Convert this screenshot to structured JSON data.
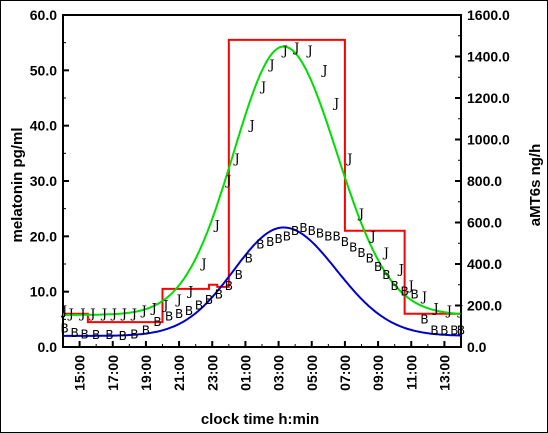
{
  "chart_data": {
    "type": "line",
    "title": "",
    "xlabel": "clock time h:min",
    "ylabel_left": "melatonin pg/ml",
    "ylabel_right": "aMT6s ng/h",
    "x_range_hours": [
      14,
      26
    ],
    "x_ticks": [
      "15:00",
      "17:00",
      "19:00",
      "21:00",
      "23:00",
      "01:00",
      "03:00",
      "05:00",
      "07:00",
      "09:00",
      "11:00",
      "13:00"
    ],
    "ylim_left": [
      0,
      60
    ],
    "ylim_right": [
      0,
      1600
    ],
    "y_ticks_left": [
      "0.0",
      "10.0",
      "20.0",
      "30.0",
      "40.0",
      "50.0",
      "60.0"
    ],
    "y_ticks_right": [
      "0.0",
      "200.0",
      "400.0",
      "600.0",
      "800.0",
      "1000.0",
      "1200.0",
      "1400.0",
      "1600.0"
    ],
    "colors": {
      "fit_j": "#00dd00",
      "fit_b": "#0000cc",
      "step": "#ff0000",
      "axis": "#000000"
    },
    "series_j": {
      "marker": "J",
      "axis": "left",
      "x": [
        14.1,
        14.5,
        15.2,
        15.8,
        16.5,
        17.1,
        17.7,
        18.3,
        18.9,
        19.5,
        20.2,
        21.0,
        21.7,
        22.5,
        23.3,
        24.0,
        24.5,
        25.4,
        26.1,
        26.6,
        27.4,
        28.1,
        28.9,
        29.8,
        30.5,
        31.3,
        32.0,
        32.7,
        33.5,
        34.4,
        35.0,
        35.8,
        36.5,
        37.3,
        38.0
      ],
      "y": [
        6.5,
        6.0,
        6.0,
        6.0,
        6.0,
        6.0,
        6.0,
        6.0,
        6.5,
        7.0,
        7.5,
        8.5,
        10.0,
        15.0,
        22.0,
        30.0,
        34.0,
        40.0,
        47.0,
        51.0,
        53.5,
        54.0,
        53.5,
        50.0,
        44.0,
        34.0,
        24.0,
        20.0,
        17.0,
        14.0,
        11.0,
        9.0,
        7.0,
        6.5,
        6.5
      ]
    },
    "series_b": {
      "marker": "B",
      "axis": "left",
      "x": [
        14.1,
        14.7,
        15.3,
        16.0,
        16.8,
        17.6,
        18.3,
        19.0,
        19.7,
        20.4,
        21.0,
        21.6,
        22.2,
        22.8,
        23.4,
        24.0,
        24.6,
        25.2,
        25.9,
        26.5,
        27.0,
        27.5,
        28.0,
        28.5,
        29.0,
        29.5,
        30.0,
        30.5,
        31.0,
        31.5,
        32.0,
        32.5,
        33.0,
        33.5,
        34.0,
        34.6,
        35.2,
        35.8,
        36.4,
        37.0,
        37.6,
        38.0
      ],
      "y": [
        3.3,
        2.5,
        2.3,
        2.2,
        2.2,
        2.0,
        2.3,
        3.0,
        4.5,
        5.5,
        6.0,
        6.5,
        7.5,
        8.5,
        9.5,
        11.0,
        13.0,
        16.0,
        18.5,
        19.0,
        19.5,
        20.0,
        21.0,
        21.5,
        21.0,
        20.5,
        20.0,
        20.0,
        19.0,
        18.0,
        17.0,
        16.0,
        14.5,
        13.0,
        11.0,
        10.0,
        9.5,
        5.0,
        3.0,
        3.0,
        3.0,
        3.0
      ]
    },
    "series_fit_j": {
      "axis": "left",
      "baseline": 5.8,
      "amplitude": 48.5,
      "peak_hour": 27.3,
      "sigma_left": 3.0,
      "sigma_right": 3.2
    },
    "series_fit_b": {
      "axis": "left",
      "baseline": 2.0,
      "amplitude": 19.6,
      "peak_hour": 27.3,
      "sigma_left": 3.0,
      "sigma_right": 3.2
    },
    "series_step": {
      "axis": "right",
      "segments": [
        {
          "x0": 14.0,
          "x1": 15.5,
          "y": 160
        },
        {
          "x0": 15.5,
          "x1": 20.0,
          "y": 120
        },
        {
          "x0": 20.0,
          "x1": 22.8,
          "y": 280
        },
        {
          "x0": 22.8,
          "x1": 23.3,
          "y": 300
        },
        {
          "x0": 23.3,
          "x1": 24.0,
          "y": 290
        },
        {
          "x0": 24.0,
          "x1": 31.0,
          "y": 1480
        },
        {
          "x0": 31.0,
          "x1": 34.6,
          "y": 560
        },
        {
          "x0": 34.6,
          "x1": 36.0,
          "y": 160
        },
        {
          "x0": 36.0,
          "x1": 38.0,
          "y": 160
        }
      ]
    }
  }
}
